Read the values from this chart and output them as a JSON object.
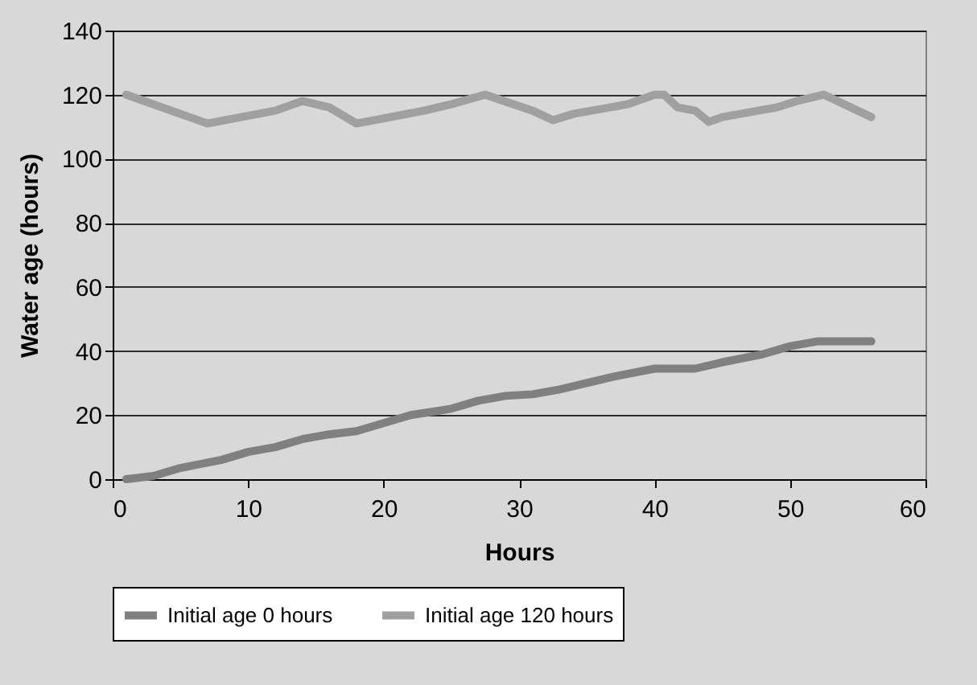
{
  "chart_data": {
    "type": "line",
    "xlabel": "Hours",
    "ylabel": "Water age (hours)",
    "xlim": [
      0,
      60
    ],
    "xticks": [
      0,
      10,
      20,
      30,
      40,
      50,
      60
    ],
    "ylim": [
      0,
      140
    ],
    "yticks": [
      0,
      20,
      40,
      60,
      80,
      100,
      120,
      140
    ],
    "grid": "y",
    "legend": "bottom",
    "marker": "none",
    "line_style": "solid",
    "series": [
      {
        "name": "Initial age 0 hours",
        "color": "#808080",
        "x": [
          1,
          3,
          5,
          8,
          10,
          12,
          14,
          16,
          18,
          20,
          22,
          25,
          27,
          29,
          31,
          33,
          35,
          37,
          40,
          43,
          45,
          48,
          50,
          52,
          56
        ],
        "values": [
          0,
          1,
          3.5,
          6,
          8.5,
          10,
          12.5,
          14,
          15,
          17.5,
          20,
          22,
          24.5,
          26,
          26.5,
          28,
          30,
          32,
          34.5,
          34.5,
          36.5,
          39,
          41.5,
          43,
          43
        ]
      },
      {
        "name": "Initial age 120 hours",
        "color": "#a0a0a0",
        "x": [
          1,
          7,
          12,
          14,
          16,
          18,
          23,
          25,
          27.5,
          31,
          32.5,
          34,
          38,
          40,
          40.7,
          41.7,
          43,
          44,
          45,
          49,
          50.5,
          52.5,
          56
        ],
        "values": [
          120,
          111,
          115,
          118,
          116,
          111,
          115,
          117,
          120,
          115,
          112,
          114,
          117,
          120,
          120,
          116,
          115,
          111.5,
          113,
          116,
          118,
          120,
          113
        ]
      }
    ]
  }
}
